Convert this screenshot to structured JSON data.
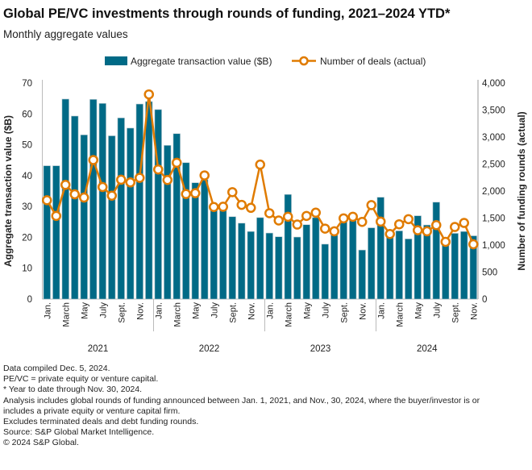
{
  "title": "Global PE/VC investments through rounds of funding, 2021–2024 YTD*",
  "subtitle": "Monthly aggregate values",
  "chart_data": {
    "type": "bar+line",
    "legend_position": "top",
    "grid": false,
    "colors": {
      "bars": "#006A86",
      "line": "#E07B00"
    },
    "months": [
      "Jan.",
      "Feb.",
      "March",
      "April",
      "May",
      "June",
      "July",
      "Aug.",
      "Sept.",
      "Oct.",
      "Nov.",
      "Dec.",
      "Jan.",
      "Feb.",
      "March",
      "April",
      "May",
      "June",
      "July",
      "Aug.",
      "Sept.",
      "Oct.",
      "Nov.",
      "Dec.",
      "Jan.",
      "Feb.",
      "March",
      "April",
      "May",
      "June",
      "July",
      "Aug.",
      "Sept.",
      "Oct.",
      "Nov.",
      "Dec.",
      "Jan.",
      "Feb.",
      "March",
      "April",
      "May",
      "June",
      "July",
      "Aug.",
      "Sept.",
      "Oct.",
      "Nov."
    ],
    "month_tick_labels": [
      "Jan.",
      "",
      "March",
      "",
      "May",
      "",
      "July",
      "",
      "Sept.",
      "",
      "Nov.",
      ""
    ],
    "years": [
      "2021",
      "2022",
      "2023",
      "2024"
    ],
    "series": [
      {
        "name": "Aggregate transaction value ($B)",
        "type": "bar",
        "axis": "left",
        "values": [
          43.2,
          43.2,
          64.8,
          59.3,
          53.2,
          64.7,
          63.4,
          52.9,
          58.7,
          55.4,
          63.2,
          64.0,
          61.4,
          49.8,
          53.6,
          44.2,
          37.7,
          38.7,
          29.5,
          29.5,
          26.7,
          24.6,
          21.9,
          26.4,
          21.4,
          20.2,
          33.9,
          20.1,
          24.1,
          26.4,
          17.8,
          20.7,
          25.1,
          25.9,
          15.9,
          23.1,
          33.0,
          20.7,
          22.1,
          19.5,
          27.0,
          24.0,
          31.4,
          17.5,
          21.3,
          21.9,
          20.5
        ]
      },
      {
        "name": "Number of deals (actual)",
        "type": "line",
        "axis": "right",
        "values": [
          1830,
          1540,
          2115,
          1940,
          1880,
          2575,
          2075,
          1915,
          2210,
          2160,
          2245,
          3790,
          2400,
          2205,
          2525,
          1945,
          1960,
          2290,
          1705,
          1710,
          1980,
          1745,
          1690,
          2490,
          1590,
          1455,
          1525,
          1380,
          1540,
          1600,
          1305,
          1255,
          1495,
          1525,
          1430,
          1740,
          1435,
          1205,
          1385,
          1480,
          1275,
          1255,
          1370,
          1060,
          1335,
          1410,
          1015
        ]
      }
    ],
    "left_axis": {
      "label": "Aggregate transaction value ($B)",
      "range": [
        0,
        70
      ],
      "ticks": [
        "0",
        "10",
        "20",
        "30",
        "40",
        "50",
        "60",
        "70"
      ]
    },
    "right_axis": {
      "label": "Number of funding rounds (actual)",
      "range": [
        0,
        4000
      ],
      "ticks": [
        "0",
        "500",
        "1,000",
        "1,500",
        "2,000",
        "2,500",
        "3,000",
        "3,500",
        "4,000"
      ]
    }
  },
  "notes": [
    "Data compiled Dec. 5, 2024.",
    "PE/VC = private equity or venture capital.",
    "* Year to date through Nov. 30, 2024.",
    "Analysis includes global rounds of funding announced between Jan. 1, 2021, and Nov., 30, 2024, where the buyer/investor is or includes a private equity or venture capital firm.",
    "Excludes terminated deals and debt funding rounds.",
    "Source: S&P Global Market Intelligence.",
    "© 2024 S&P Global."
  ]
}
